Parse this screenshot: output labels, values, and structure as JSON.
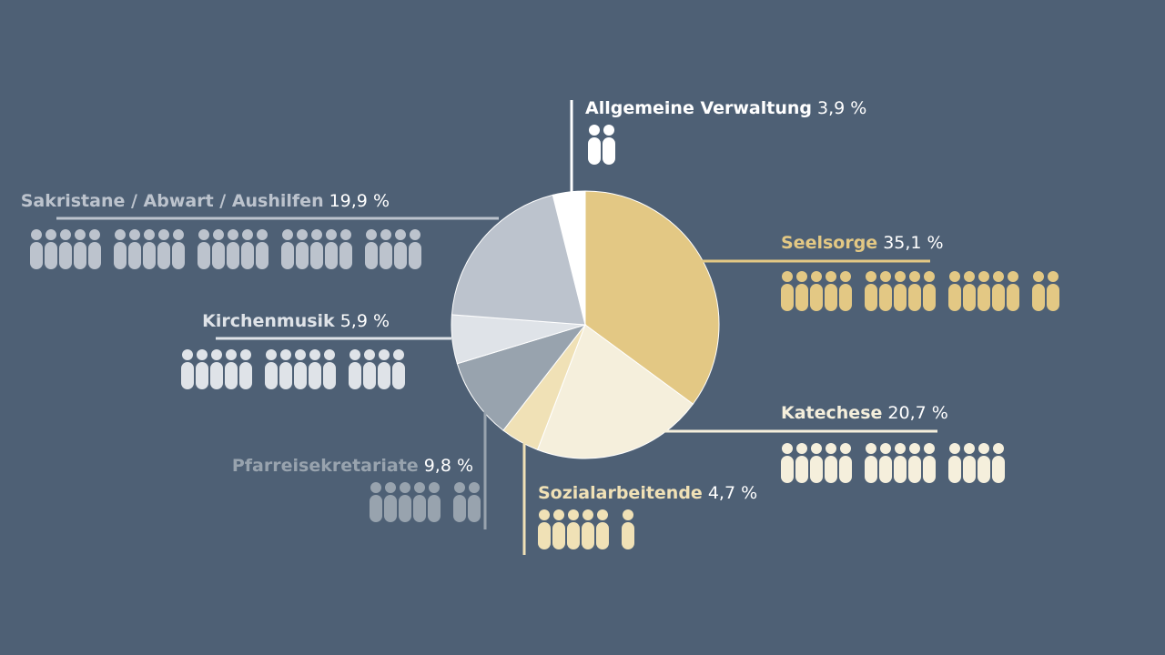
{
  "chart_data": {
    "type": "pie",
    "title": "",
    "slices": [
      {
        "name": "Seelsorge",
        "value": 35.1,
        "pct_label": "35,1 %",
        "color": "#e3c884",
        "label_color": "#e3c884",
        "icon_count": 17
      },
      {
        "name": "Katechese",
        "value": 20.7,
        "pct_label": "20,7 %",
        "color": "#f5efdc",
        "label_color": "#f5efdc",
        "icon_count": 14
      },
      {
        "name": "Sozialarbeitende",
        "value": 4.7,
        "pct_label": "4,7 %",
        "color": "#f0e1b6",
        "label_color": "#f0e1b6",
        "icon_count": 6
      },
      {
        "name": "Pfarreisekretariate",
        "value": 9.8,
        "pct_label": "9,8 %",
        "color": "#98a3ae",
        "label_color": "#98a3ae",
        "icon_count": 7
      },
      {
        "name": "Kirchenmusik",
        "value": 5.9,
        "pct_label": "5,9 %",
        "color": "#dfe3e8",
        "label_color": "#dfe3e8",
        "icon_count": 14
      },
      {
        "name": "Sakristane / Abwart / Aushilfen",
        "value": 19.9,
        "pct_label": "19,9 %",
        "color": "#bcc3cd",
        "label_color": "#bcc3cd",
        "icon_count": 24
      },
      {
        "name": "Allgemeine Verwaltung",
        "value": 3.9,
        "pct_label": "3,9 %",
        "color": "#ffffff",
        "label_color": "#ffffff",
        "icon_count": 2
      }
    ],
    "start_angle_deg": 0,
    "direction": "clockwise",
    "icon_group_size": 5,
    "grid": false,
    "legend": "none"
  }
}
